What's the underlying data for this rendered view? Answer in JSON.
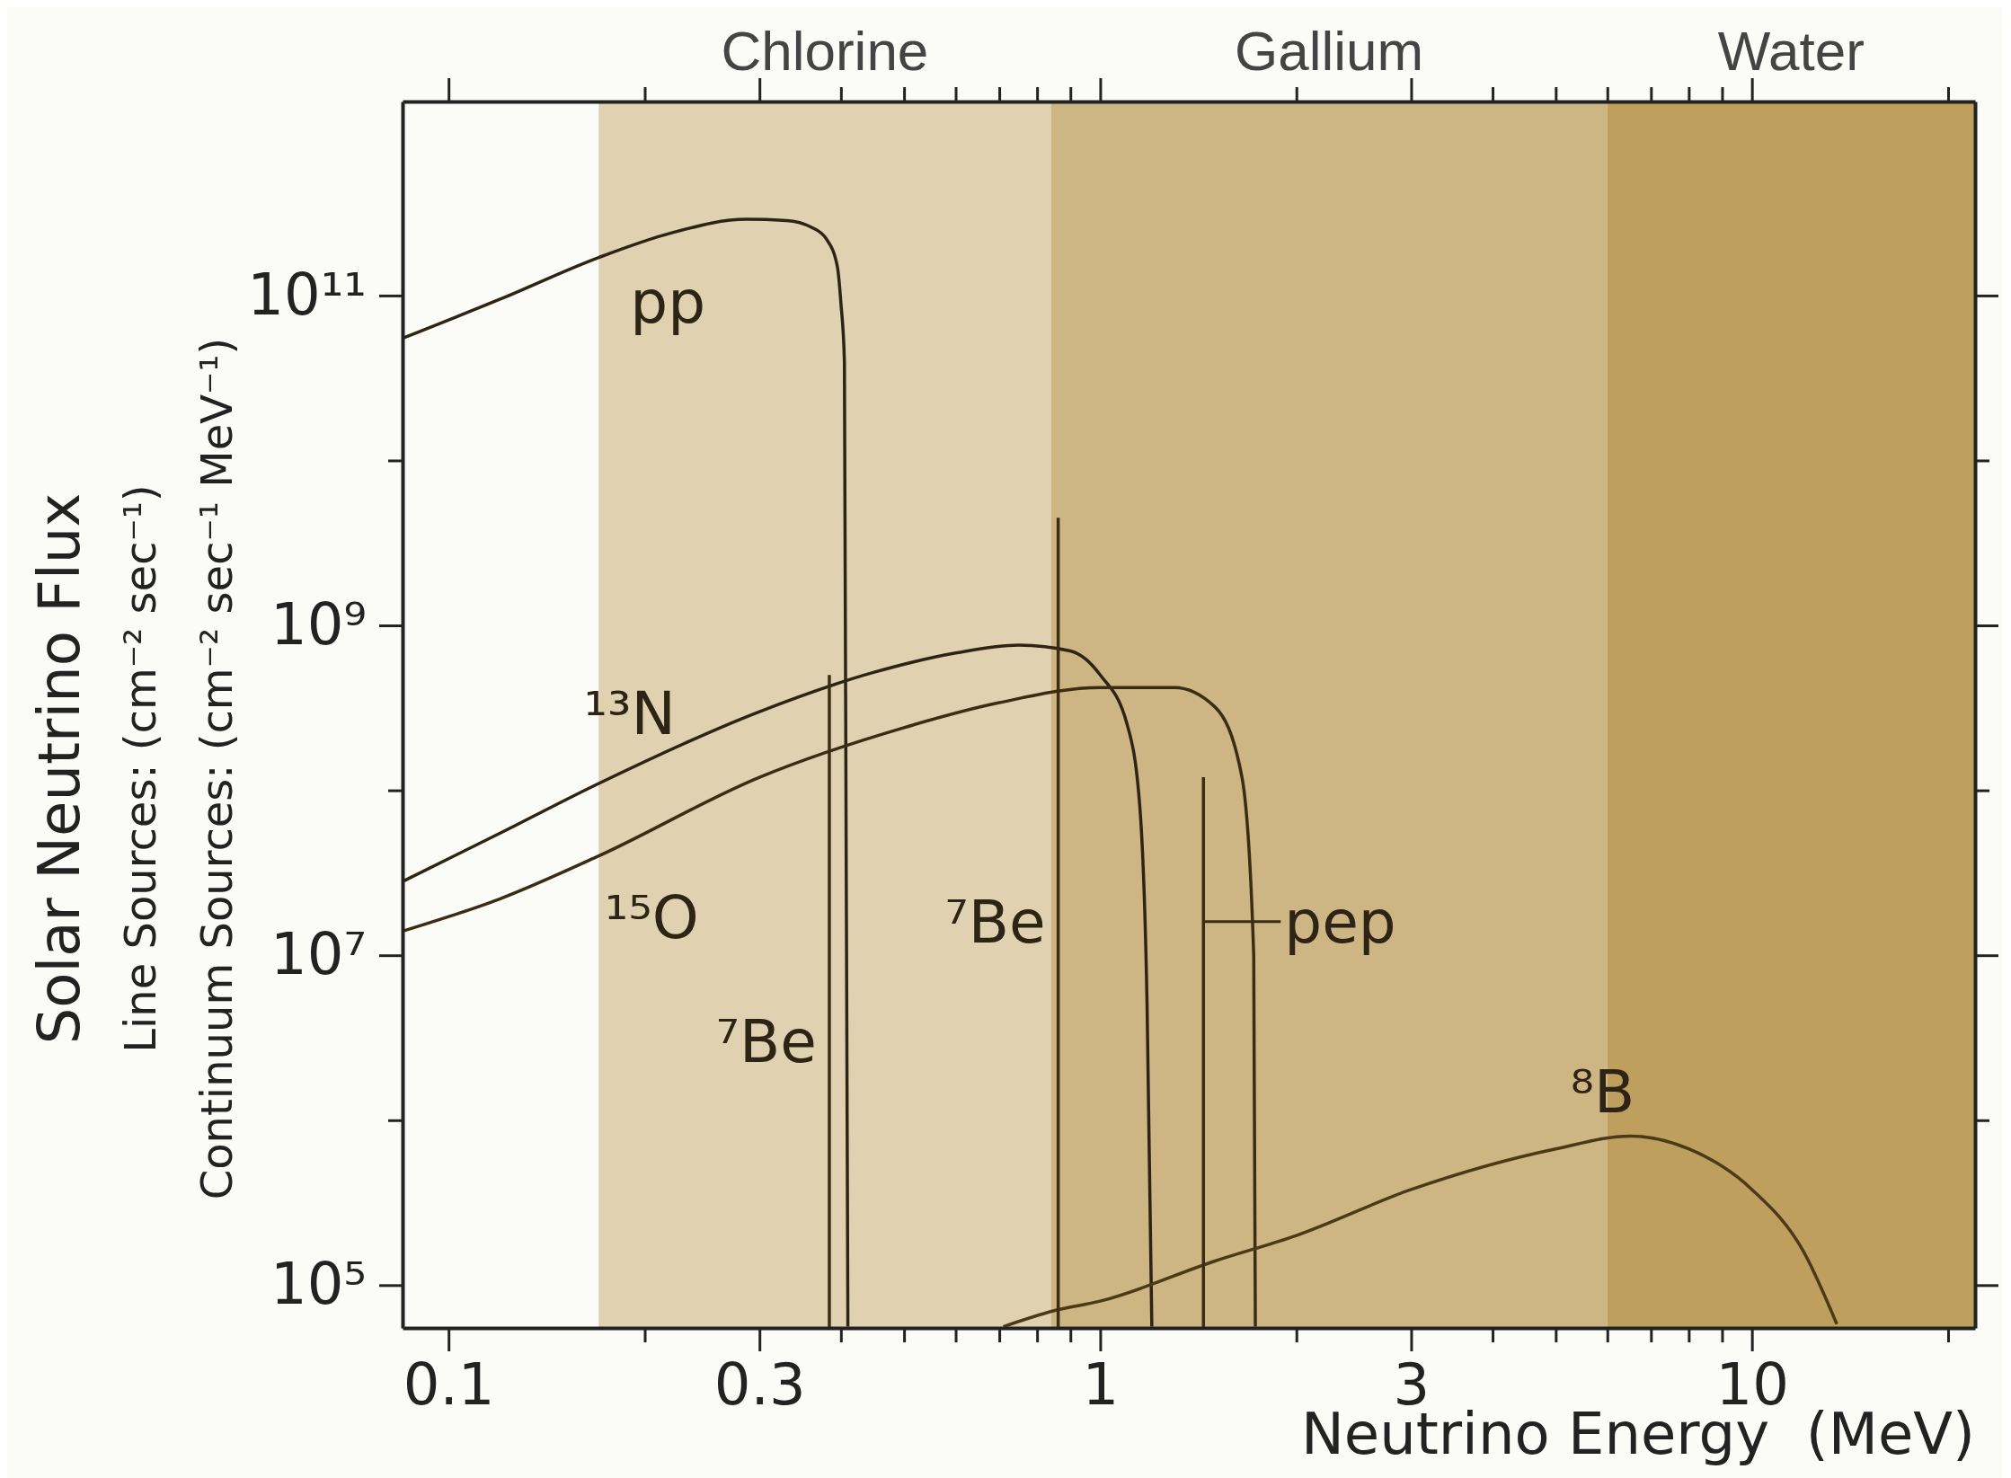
{
  "chart_data": {
    "type": "line",
    "xlabel": "Neutrino Energy  (MeV)",
    "ylabel": "Solar Neutrino Flux\nLine Sources: (cm⁻² sec⁻¹)\nContinuum Sources: (cm⁻² sec⁻¹ MeV⁻¹)",
    "log": "xy",
    "grid": false,
    "marker": "none",
    "line_style": "solid",
    "xlim": [
      0.085,
      22
    ],
    "ylim": [
      55000,
      1500000000000
    ],
    "xticks": [
      0.1,
      {
        "value": 0.2,
        "label": null
      },
      0.3,
      {
        "value": 0.4,
        "label": null
      },
      {
        "value": 0.5,
        "label": null
      },
      {
        "value": 0.6,
        "label": null
      },
      {
        "value": 0.7,
        "label": null
      },
      {
        "value": 0.8,
        "label": null
      },
      {
        "value": 0.9,
        "label": null
      },
      1,
      {
        "value": 2,
        "label": null
      },
      3,
      {
        "value": 4,
        "label": null
      },
      {
        "value": 5,
        "label": null
      },
      {
        "value": 6,
        "label": null
      },
      {
        "value": 7,
        "label": null
      },
      {
        "value": 8,
        "label": null
      },
      {
        "value": 9,
        "label": null
      },
      10,
      {
        "value": 20,
        "label": null
      }
    ],
    "yticks": [
      {
        "value": 100000,
        "label": "10⁵"
      },
      {
        "value": 1000000,
        "label": null
      },
      {
        "value": 10000000,
        "label": "10⁷"
      },
      {
        "value": 100000000,
        "label": null
      },
      {
        "value": 1000000000,
        "label": "10⁹"
      },
      {
        "value": 10000000000,
        "label": null
      },
      {
        "value": 100000000000,
        "label": "10¹¹"
      }
    ],
    "bands": [
      {
        "axis": "x",
        "from": 0.17,
        "to": 0.84,
        "label": "Chlorine",
        "color": "#e0d2b0"
      },
      {
        "axis": "x",
        "from": 0.84,
        "to": 6,
        "label": "Gallium",
        "color": "#cdb584"
      },
      {
        "axis": "x",
        "from": 6,
        "to": 22,
        "label": "Water",
        "color": "#bf9f5e"
      }
    ],
    "series": [
      {
        "color": "#2e2416",
        "x": [
          0.085,
          0.12,
          0.17,
          0.22,
          0.286,
          0.33,
          0.36,
          0.38,
          0.395,
          0.4,
          0.405,
          0.41
        ],
        "values": [
          55000000000,
          95000000000,
          170000000000,
          240000000000,
          290000000000,
          285000000000,
          260000000000,
          220000000000,
          150000000000,
          90000000000,
          40000000000,
          56000
        ]
      },
      {
        "color": "#2e2416",
        "x": [
          0.085,
          0.12,
          0.17,
          0.3,
          0.45,
          0.6,
          0.75,
          0.9,
          1.0,
          1.1,
          1.15,
          1.18,
          1.2
        ],
        "values": [
          28000000,
          55000000,
          110000000,
          300000000,
          520000000,
          680000000,
          760000000,
          700000000,
          500000000,
          250000000,
          80000000,
          5000000,
          56000
        ]
      },
      {
        "color": "#3b2d14",
        "x": [
          0.085,
          0.12,
          0.17,
          0.3,
          0.5,
          0.7,
          1.0,
          1.3,
          1.5,
          1.65,
          1.72,
          1.73
        ],
        "values": [
          14000000,
          22000000,
          40000000,
          120000000,
          240000000,
          340000000,
          420000000,
          420000000,
          320000000,
          120000000,
          10000000,
          56000
        ]
      },
      {
        "color": "#4a3a18",
        "x": [
          0.71,
          0.85,
          1.0,
          1.5,
          2,
          3,
          5,
          6.5,
          8,
          10,
          12,
          13.5
        ],
        "values": [
          56000,
          70000,
          80000,
          140000,
          200000,
          380000,
          670000,
          800000,
          670000,
          380000,
          160000,
          58000
        ]
      },
      {
        "type": "bar",
        "color": "#3b2d14",
        "x": [
          0.384,
          0.862,
          1.44
        ],
        "values": [
          500000000,
          4500000000,
          120000000
        ]
      }
    ],
    "annotations": [
      {
        "text": "pp",
        "x": 0.19,
        "y": 195000000000
      },
      {
        "text": "¹³N",
        "x": 0.183,
        "y": 125000000
      },
      {
        "text": "¹⁵O",
        "x": 0.197,
        "y": 50000000
      },
      {
        "text": "⁷Be",
        "x": 0.384,
        "y": 3000000
      },
      {
        "text": "⁷Be",
        "x": 0.862,
        "y": 16000000
      },
      {
        "text": "pep",
        "x": 1.44,
        "y": 16000000
      },
      {
        "text": "⁸B",
        "x": 5.9,
        "y": 750000
      }
    ]
  }
}
